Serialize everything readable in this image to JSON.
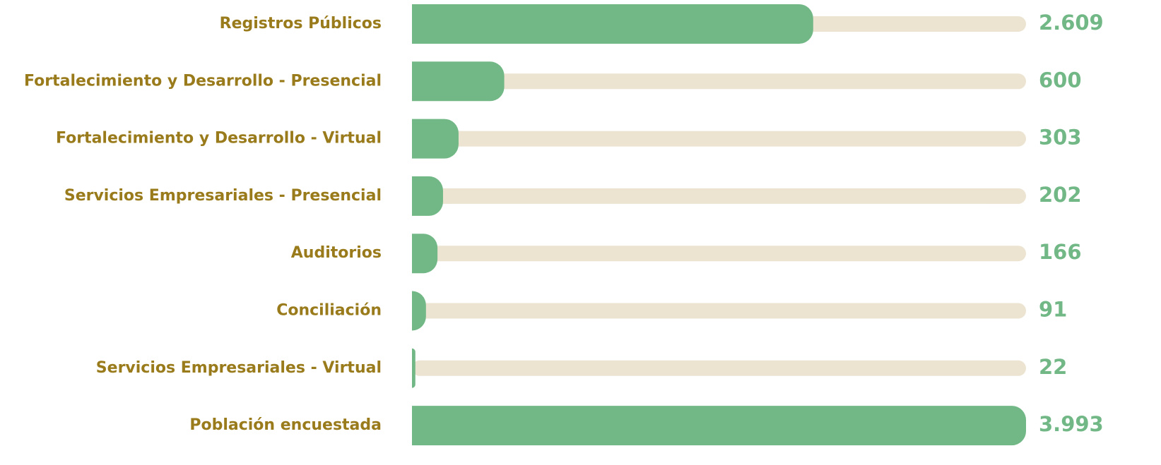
{
  "chart_data": {
    "type": "bar",
    "orientation": "horizontal",
    "categories": [
      "Registros Públicos",
      "Fortalecimiento y Desarrollo - Presencial",
      "Fortalecimiento y Desarrollo - Virtual",
      "Servicios Empresariales - Presencial",
      "Auditorios",
      "Conciliación",
      "Servicios Empresariales - Virtual",
      "Población encuestada"
    ],
    "values": [
      2609,
      600,
      303,
      202,
      166,
      91,
      22,
      3993
    ],
    "value_labels": [
      "2.609",
      "600",
      "303",
      "202",
      "166",
      "91",
      "22",
      "3.993"
    ],
    "color": "#72b886",
    "track_color": "#ece4d1",
    "label_color": "#9a7b1c",
    "xlim": [
      0,
      3993
    ]
  }
}
